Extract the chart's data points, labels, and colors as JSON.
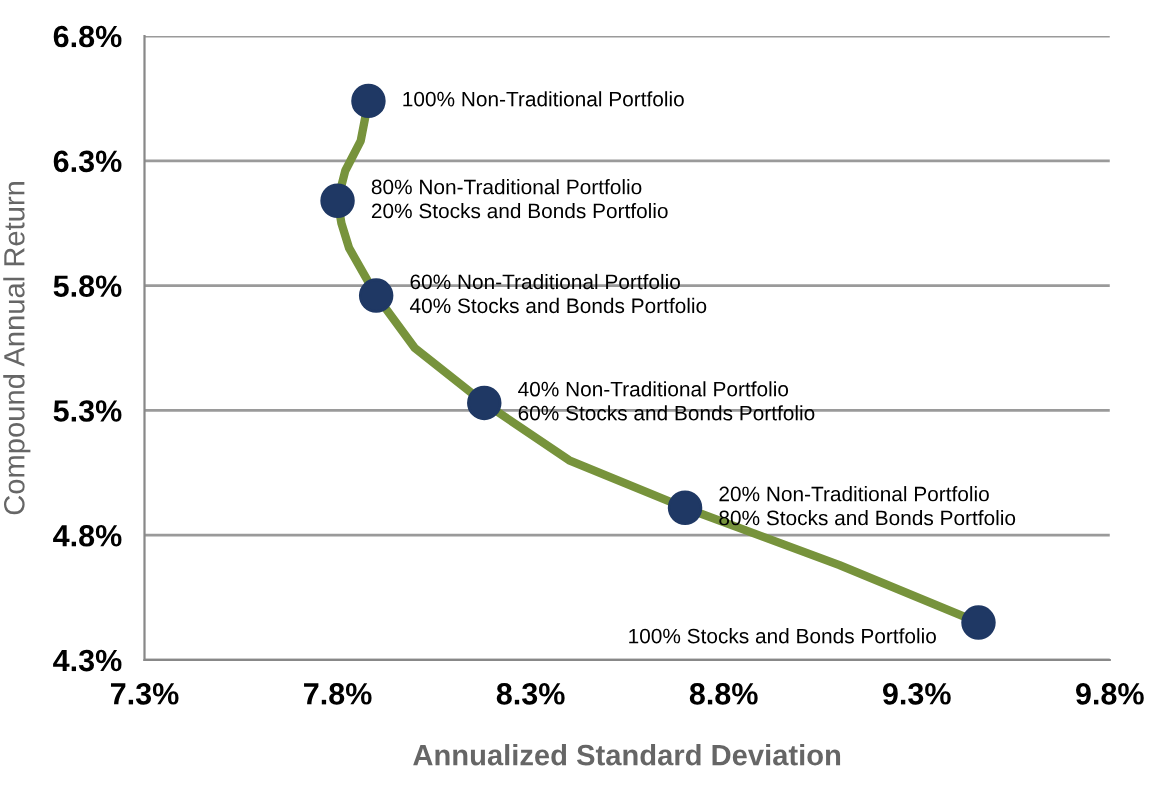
{
  "chart_data": {
    "type": "line",
    "xlabel": "Annualized Standard Deviation",
    "ylabel": "Compound Annual Return",
    "xlim": [
      7.3,
      9.8
    ],
    "xticks": [
      {
        "value": 7.3,
        "label": "7.3%"
      },
      {
        "value": 7.8,
        "label": "7.8%"
      },
      {
        "value": 8.3,
        "label": "8.3%"
      },
      {
        "value": 8.8,
        "label": "8.8%"
      },
      {
        "value": 9.3,
        "label": "9.3%"
      },
      {
        "value": 9.8,
        "label": "9.8%"
      }
    ],
    "ylim": [
      4.3,
      6.8
    ],
    "yticks": [
      {
        "value": 4.3,
        "label": "4.3%"
      },
      {
        "value": 4.8,
        "label": "4.8%"
      },
      {
        "value": 5.3,
        "label": "5.3%"
      },
      {
        "value": 5.8,
        "label": "5.8%"
      },
      {
        "value": 6.3,
        "label": "6.3%"
      },
      {
        "value": 6.8,
        "label": "6.8%"
      }
    ],
    "grid": "y",
    "legend": false,
    "series": [
      {
        "color": "#77933c",
        "marker": "none",
        "line_style": "solid",
        "x": [
          7.88,
          7.86,
          7.82,
          7.8,
          7.81,
          7.83,
          7.9,
          8.0,
          8.18,
          8.4,
          8.7,
          9.1,
          9.46
        ],
        "values": [
          6.54,
          6.38,
          6.26,
          6.14,
          6.05,
          5.95,
          5.76,
          5.55,
          5.33,
          5.1,
          4.91,
          4.68,
          4.45
        ]
      },
      {
        "type": "scatter",
        "color": "#1f3864",
        "marker": "circle",
        "x": [
          7.88,
          7.8,
          7.9,
          8.18,
          8.7,
          9.46
        ],
        "values": [
          6.54,
          6.14,
          5.76,
          5.33,
          4.91,
          4.45
        ]
      }
    ],
    "annotations": [
      {
        "text": "100% Non-Traditional Portfolio",
        "x": 7.88,
        "y": 6.54
      },
      {
        "text": "80% Non-Traditional Portfolio\n20% Stocks and Bonds Portfolio",
        "x": 7.8,
        "y": 6.14
      },
      {
        "text": "60% Non-Traditional Portfolio\n40% Stocks and Bonds Portfolio",
        "x": 7.9,
        "y": 5.76
      },
      {
        "text": "40% Non-Traditional Portfolio\n60% Stocks and Bonds Portfolio",
        "x": 8.18,
        "y": 5.33
      },
      {
        "text": "20% Non-Traditional Portfolio\n80% Stocks and Bonds Portfolio",
        "x": 8.7,
        "y": 4.91
      },
      {
        "text": "100% Stocks and Bonds Portfolio",
        "x": 9.46,
        "y": 4.45
      }
    ]
  }
}
